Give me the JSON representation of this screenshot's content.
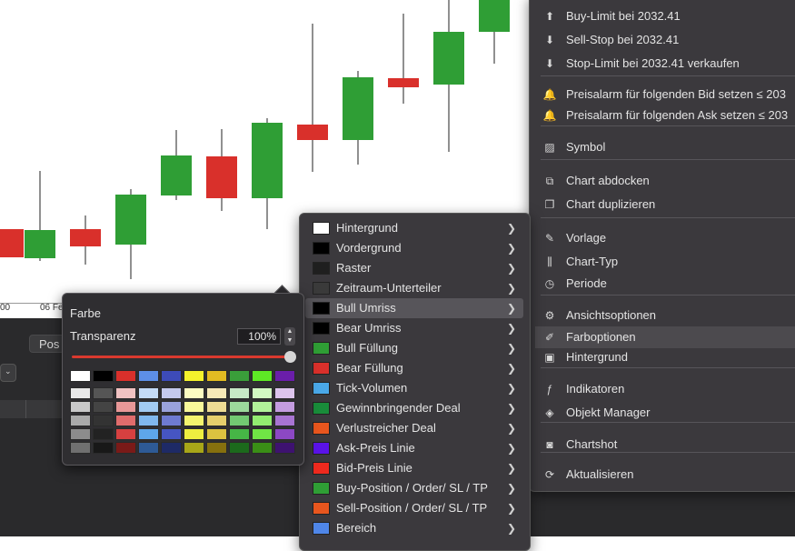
{
  "chart": {
    "axis_labels": [
      "00",
      "06 Fe"
    ]
  },
  "bottom_panel": {
    "tab_label": "Pos"
  },
  "main_menu": {
    "items": [
      {
        "icon": "arrow-up-icon",
        "label": "Buy-Limit bei 2032.41"
      },
      {
        "icon": "arrow-down-icon",
        "label": "Sell-Stop bei 2032.41"
      },
      {
        "icon": "arrow-down-icon",
        "label": "Stop-Limit bei 2032.41 verkaufen"
      },
      {
        "icon": "bell-icon",
        "label": "Preisalarm für folgenden Bid setzen ≤ 203"
      },
      {
        "icon": "bell-icon",
        "label": "Preisalarm für folgenden Ask setzen ≤ 203"
      },
      {
        "icon": "symbol-chart-icon",
        "label": "Symbol"
      },
      {
        "icon": "undock-icon",
        "label": "Chart abdocken"
      },
      {
        "icon": "duplicate-icon",
        "label": "Chart duplizieren"
      },
      {
        "icon": "template-icon",
        "label": "Vorlage"
      },
      {
        "icon": "candlestick-icon",
        "label": "Chart-Typ"
      },
      {
        "icon": "clock-icon",
        "label": "Periode"
      },
      {
        "icon": "gear-icon",
        "label": "Ansichtsoptionen"
      },
      {
        "icon": "paint-brush-icon",
        "label": "Farboptionen"
      },
      {
        "icon": "image-icon",
        "label": "Hintergrund"
      },
      {
        "icon": "function-icon",
        "label": "Indikatoren"
      },
      {
        "icon": "layers-icon",
        "label": "Objekt Manager"
      },
      {
        "icon": "camera-icon",
        "label": "Chartshot"
      },
      {
        "icon": "refresh-icon",
        "label": "Aktualisieren"
      }
    ]
  },
  "color_menu": {
    "items": [
      {
        "label": "Hintergrund",
        "color": "#ffffff"
      },
      {
        "label": "Vordergrund",
        "color": "#000000"
      },
      {
        "label": "Raster",
        "color": "#1f1f1f"
      },
      {
        "label": "Zeitraum-Unterteiler",
        "color": "#3a3a3a"
      },
      {
        "label": "Bull Umriss",
        "color": "#000000"
      },
      {
        "label": "Bear Umriss",
        "color": "#000000"
      },
      {
        "label": "Bull Füllung",
        "color": "#2f9e35"
      },
      {
        "label": "Bear Füllung",
        "color": "#d9302b"
      },
      {
        "label": "Tick-Volumen",
        "color": "#4aa8e8"
      },
      {
        "label": "Gewinnbringender Deal",
        "color": "#198c3a"
      },
      {
        "label": "Verlustreicher Deal",
        "color": "#e8561e"
      },
      {
        "label": "Ask-Preis Linie",
        "color": "#5a13e8"
      },
      {
        "label": "Bid-Preis Linie",
        "color": "#ee2a1e"
      },
      {
        "label": "Buy-Position / Order/ SL / TP",
        "color": "#2f9e35"
      },
      {
        "label": "Sell-Position / Order/ SL / TP",
        "color": "#e8561e"
      },
      {
        "label": "Bereich",
        "color": "#4f86e8"
      }
    ]
  },
  "farbe": {
    "title": "Farbe",
    "transparency_label": "Transparenz",
    "transparency_value": "100%",
    "palette": [
      [
        "#ffffff",
        "#000000",
        "#d9302b",
        "#5d8fe6",
        "#3d4bb8",
        "#f4f22c",
        "#e2bb22",
        "#3a9e3a",
        "#5ee825",
        "#6a1eaa"
      ],
      [
        "#e8e8e8",
        "#555555",
        "#f0c2c2",
        "#c4dbf6",
        "#c4c9ec",
        "#fbfbc2",
        "#f6e9b8",
        "#c6e8c6",
        "#d2f8c2",
        "#dcc4ec"
      ],
      [
        "#c8c8c8",
        "#444444",
        "#e89898",
        "#a2cbf2",
        "#9aa2dc",
        "#f8f89a",
        "#eedc94",
        "#9cd89c",
        "#b2f29a",
        "#c49ce0"
      ],
      [
        "#aaaaaa",
        "#333333",
        "#e06c6c",
        "#80b8ee",
        "#6e7ad0",
        "#f4f46e",
        "#e6cf6c",
        "#72c872",
        "#92ec70",
        "#a874d2"
      ],
      [
        "#8c8c8c",
        "#222222",
        "#d64040",
        "#5ea6ea",
        "#4655c2",
        "#eeee40",
        "#dcc240",
        "#46b646",
        "#70e445",
        "#8c48c4"
      ],
      [
        "#707070",
        "#181818",
        "#7a1a18",
        "#2e5a96",
        "#1e2a66",
        "#a8a618",
        "#86700e",
        "#1c6a1c",
        "#3a8e16",
        "#3e1270"
      ]
    ]
  }
}
